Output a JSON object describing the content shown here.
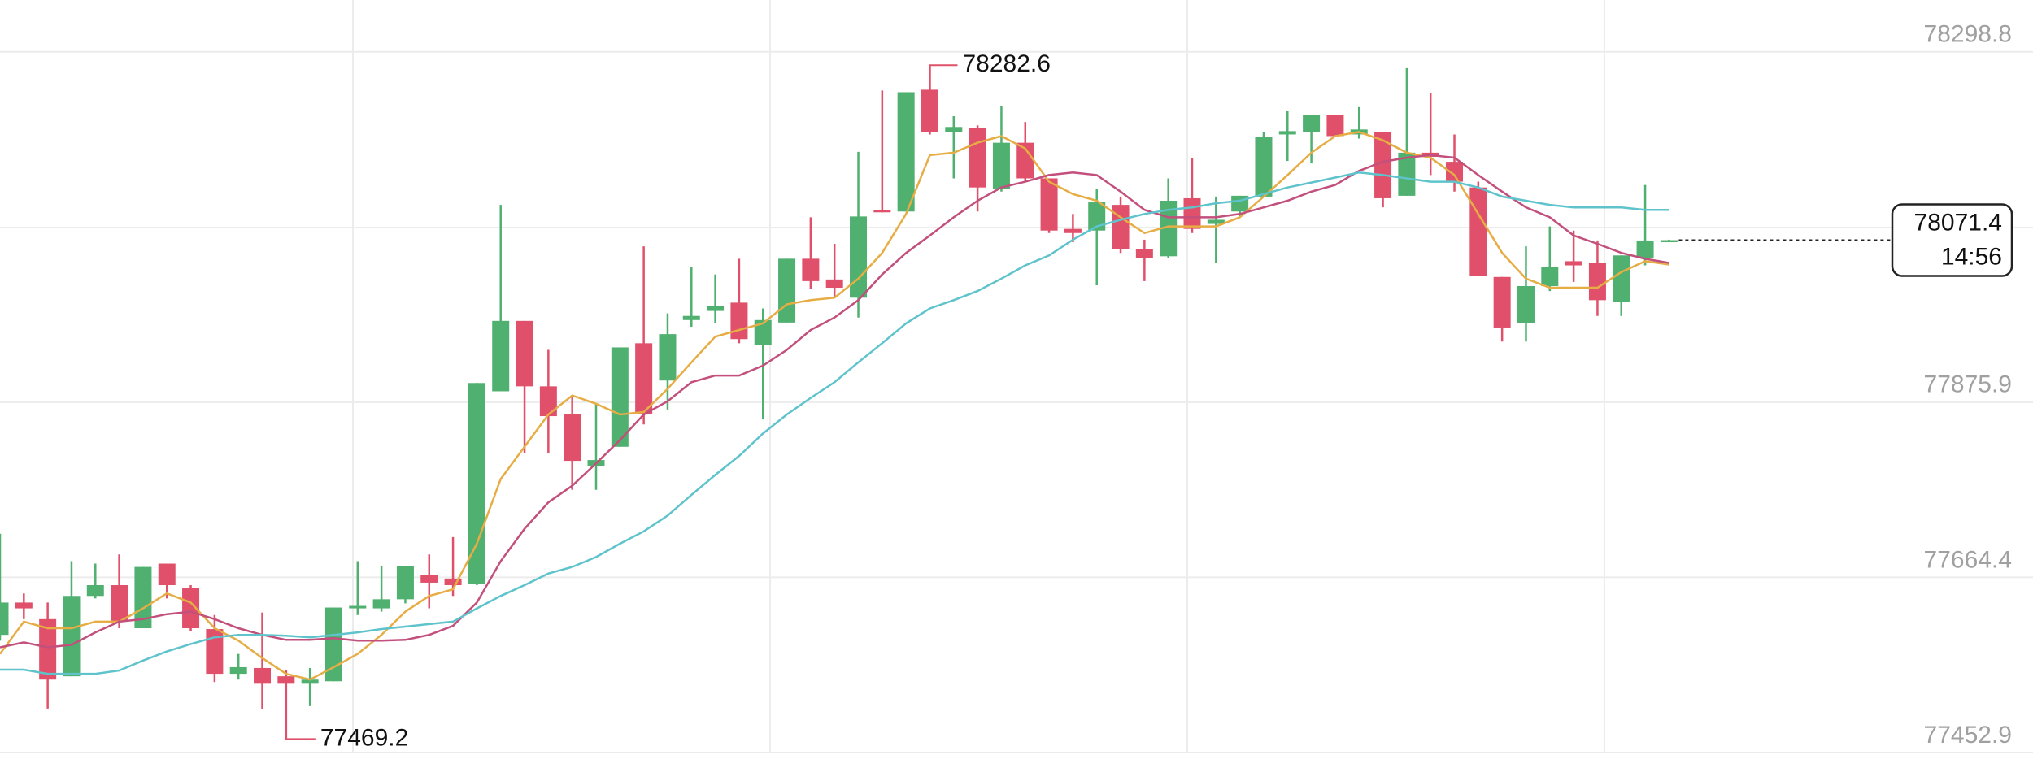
{
  "chart_data": {
    "type": "candlestick",
    "up_color": "#4fb06f",
    "down_color": "#e0506a",
    "ylim": [
      77434.3,
      78361.3
    ],
    "yticks": [
      78298.8,
      77875.9,
      77664.4,
      77452.9
    ],
    "grid": true,
    "open": [
      77595,
      77634,
      77614,
      77545,
      77642,
      77655,
      77603,
      77681,
      77652,
      77602,
      77548,
      77555,
      77545,
      77536,
      77539,
      77627,
      77627,
      77638,
      77667,
      77663,
      77656,
      77889,
      77974,
      77895,
      77861,
      77799,
      77822,
      77947,
      77902,
      77975,
      77986,
      77996,
      77945,
      77972,
      78049,
      78024,
      78002,
      78108,
      78106,
      78253,
      78202,
      78207,
      78133,
      78189,
      78146,
      78085,
      78083,
      78114,
      78061,
      78052,
      78122,
      78091,
      78106,
      78124,
      78199,
      78202,
      78222,
      78199,
      78202,
      78125,
      78177,
      78166,
      78135,
      78027,
      77971,
      78016,
      78046,
      78044,
      77997,
      78050,
      78071
    ],
    "high": [
      77717,
      77645,
      77634,
      77684,
      77681,
      77692,
      77677,
      77681,
      77655,
      77619,
      77572,
      77622,
      77552,
      77555,
      77628,
      77684,
      77678,
      77678,
      77692,
      77713,
      77899,
      78114,
      77974,
      77939,
      77884,
      77874,
      77942,
      78064,
      77983,
      78039,
      78030,
      78049,
      77989,
      78049,
      78099,
      78067,
      78178,
      78252,
      78250,
      78282.6,
      78221,
      78210,
      78233,
      78214,
      78146,
      78103,
      78133,
      78124,
      78072,
      78146,
      78171,
      78124,
      78125,
      78202,
      78227,
      78222,
      78222,
      78232,
      78202,
      78279,
      78249,
      78199,
      78142,
      78027,
      78064,
      78088,
      78083,
      78071,
      78053,
      78138,
      78072
    ],
    "low": [
      77588,
      77614,
      77506,
      77545,
      77639,
      77603,
      77603,
      77639,
      77600,
      77538,
      77541,
      77505,
      77469.2,
      77509,
      77539,
      77619,
      77623,
      77633,
      77627,
      77642,
      77655,
      77889,
      77814,
      77814,
      77770,
      77770,
      77822,
      77849,
      77867,
      77967,
      77971,
      77947,
      77855,
      77972,
      78013,
      78003,
      77978,
      78105,
      78106,
      78199,
      78146,
      78106,
      78130,
      78142,
      78080,
      78069,
      78017,
      78056,
      78022,
      78050,
      78080,
      78044,
      78099,
      78124,
      78167,
      78164,
      78196,
      78194,
      78111,
      78125,
      78150,
      78130,
      78028,
      77949,
      77949,
      78010,
      78021,
      77980,
      77980,
      78041,
      78069
    ],
    "close": [
      77634,
      77627,
      77541,
      77642,
      77655,
      77611,
      77677,
      77655,
      77603,
      77548,
      77556,
      77536,
      77536,
      77541,
      77628,
      77630,
      77638,
      77678,
      77658,
      77655,
      77899,
      77974,
      77895,
      77859,
      77805,
      77806,
      77942,
      77861,
      77958,
      77980,
      77992,
      77952,
      77975,
      78049,
      78022,
      78014,
      78100,
      78105,
      78250,
      78202,
      78208,
      78135,
      78189,
      78146,
      78083,
      78080,
      78117,
      78061,
      78050,
      78119,
      78085,
      78096,
      78125,
      78196,
      78203,
      78222,
      78197,
      78205,
      78122,
      78177,
      78172,
      78142,
      78028,
      77966,
      78016,
      78039,
      78041,
      77999,
      78053,
      78071,
      78071.4
    ],
    "ma_lines": [
      {
        "color": "#e6ad45",
        "values": [
          77572,
          77611,
          77603,
          77603,
          77611,
          77611,
          77627,
          77645,
          77634,
          77603,
          77588,
          77567,
          77548,
          77541,
          77556,
          77572,
          77595,
          77623,
          77642,
          77650,
          77705,
          77783,
          77822,
          77861,
          77884,
          77874,
          77861,
          77864,
          77892,
          77924,
          77955,
          77963,
          77971,
          77994,
          77999,
          78002,
          78025,
          78056,
          78103,
          78174,
          78177,
          78189,
          78197,
          78182,
          78142,
          78127,
          78119,
          78099,
          78080,
          78088,
          78088,
          78088,
          78099,
          78124,
          78150,
          78177,
          78197,
          78202,
          78192,
          78177,
          78171,
          78150,
          78103,
          78056,
          78025,
          78014,
          78014,
          78014,
          78033,
          78046,
          78042
        ]
      },
      {
        "color": "#c24f7c",
        "values": [
          77580,
          77586,
          77580,
          77583,
          77598,
          77611,
          77614,
          77620,
          77623,
          77614,
          77603,
          77595,
          77589,
          77589,
          77591,
          77588,
          77588,
          77589,
          77595,
          77606,
          77634,
          77684,
          77723,
          77755,
          77775,
          77802,
          77830,
          77861,
          77877,
          77900,
          77908,
          77908,
          77920,
          77939,
          77963,
          77978,
          77999,
          78030,
          78056,
          78077,
          78099,
          78119,
          78135,
          78142,
          78150,
          78153,
          78150,
          78130,
          78108,
          78099,
          78099,
          78099,
          78103,
          78111,
          78119,
          78130,
          78138,
          78155,
          78166,
          78171,
          78174,
          78171,
          78150,
          78130,
          78111,
          78099,
          78077,
          78067,
          78056,
          78049,
          78044
        ]
      },
      {
        "color": "#5fc3cc",
        "values": [
          77553,
          77553,
          77548,
          77548,
          77548,
          77552,
          77564,
          77575,
          77584,
          77592,
          77595,
          77595,
          77594,
          77592,
          77595,
          77598,
          77602,
          77605,
          77608,
          77611,
          77627,
          77642,
          77655,
          77669,
          77677,
          77689,
          77705,
          77720,
          77739,
          77764,
          77788,
          77811,
          77838,
          77861,
          77881,
          77900,
          77924,
          77947,
          77971,
          77989,
          77999,
          78010,
          78025,
          78041,
          78053,
          78072,
          78088,
          78096,
          78103,
          78108,
          78111,
          78116,
          78119,
          78127,
          78135,
          78141,
          78147,
          78153,
          78150,
          78146,
          78142,
          78142,
          78135,
          78124,
          78119,
          78114,
          78111,
          78111,
          78111,
          78108,
          78108
        ]
      }
    ],
    "countdown": "14:56"
  }
}
